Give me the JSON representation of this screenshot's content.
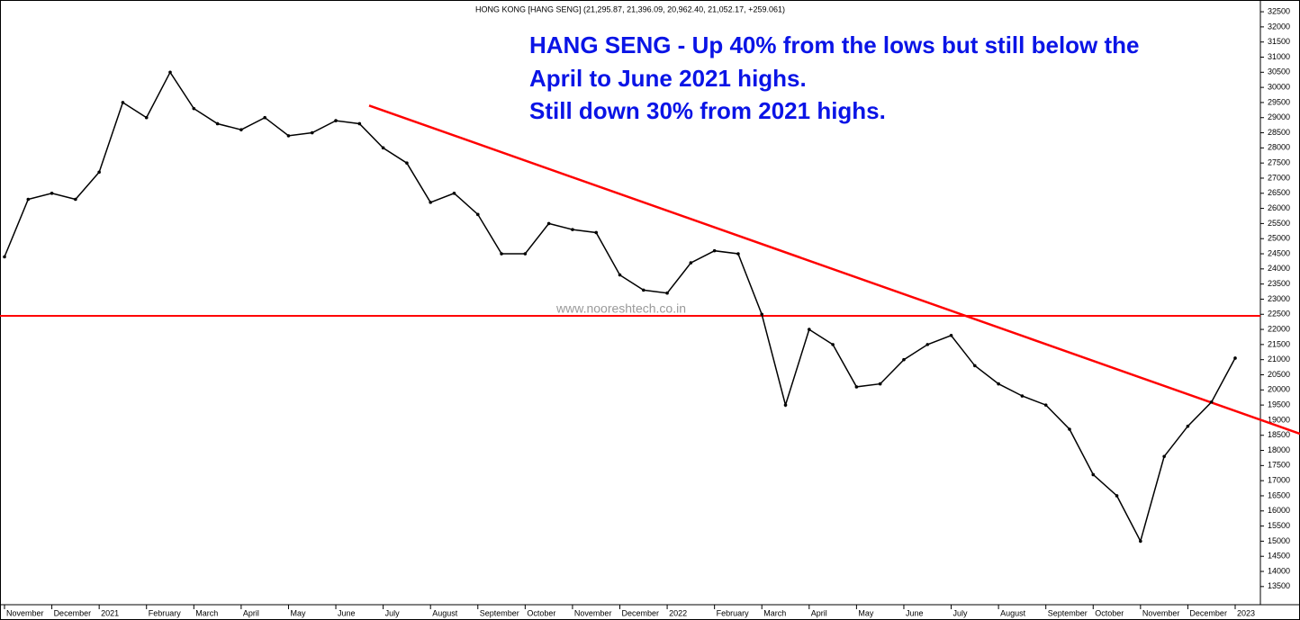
{
  "chart_data": {
    "type": "line",
    "title": "HONG KONG [HANG SENG] (21,295.87, 21,396.09, 20,962.40, 21,052.17, +259.061)",
    "annotations": [
      "HANG SENG - Up 40% from the lows but still below the",
      "April to June 2021 highs.",
      "Still down 30% from 2021 highs."
    ],
    "watermark": "www.nooreshtech.co.in",
    "categories": [
      "November",
      null,
      "December",
      null,
      "2021",
      null,
      "February",
      null,
      "March",
      null,
      "April",
      null,
      "May",
      null,
      "June",
      null,
      "July",
      null,
      "August",
      null,
      "September",
      null,
      "October",
      null,
      "November",
      null,
      "December",
      null,
      "2022",
      null,
      "February",
      null,
      "March",
      null,
      "April",
      null,
      "May",
      null,
      "June",
      null,
      "July",
      null,
      "August",
      null,
      "September",
      null,
      "October",
      null,
      "November",
      null,
      "December",
      null,
      "2023"
    ],
    "values": [
      24400,
      26300,
      26500,
      26300,
      27200,
      29500,
      29000,
      30500,
      29300,
      28800,
      28600,
      29000,
      28400,
      28500,
      28900,
      28800,
      28000,
      27500,
      26200,
      26500,
      25800,
      24500,
      24500,
      25500,
      25300,
      25200,
      23800,
      23300,
      23200,
      24200,
      24600,
      24500,
      22500,
      19500,
      22000,
      21500,
      20100,
      20200,
      21000,
      21500,
      21800,
      20800,
      20200,
      19800,
      19500,
      18700,
      17200,
      16500,
      15000,
      17800,
      18800,
      19600,
      21052
    ],
    "color": "#000000",
    "horizontal_line": 22450,
    "trendline": [
      29400,
      18550
    ],
    "line_color": "#ff0000",
    "annotation_color": "#0a14e6",
    "ylim": [
      12900,
      32740
    ],
    "yticks": [
      13500,
      14000,
      14500,
      15000,
      15500,
      16000,
      16500,
      17000,
      17500,
      18000,
      18500,
      19000,
      19500,
      20000,
      20500,
      21000,
      21500,
      22000,
      22500,
      23000,
      23500,
      24000,
      24500,
      25000,
      25500,
      26000,
      26500,
      27000,
      27500,
      28000,
      28500,
      29000,
      29500,
      30000,
      30500,
      31000,
      31500,
      32000,
      32500
    ],
    "grid": false
  }
}
